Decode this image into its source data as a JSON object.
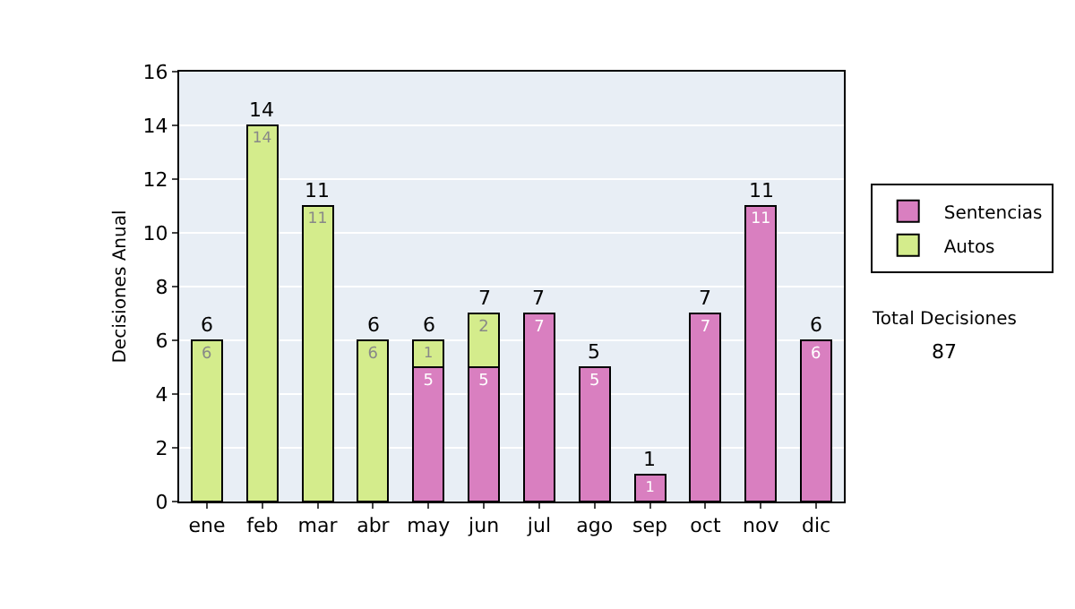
{
  "chart_data": {
    "type": "bar",
    "stacked": true,
    "ylabel": "Decisiones Anual",
    "categories": [
      "ene",
      "feb",
      "mar",
      "abr",
      "may",
      "jun",
      "jul",
      "ago",
      "sep",
      "oct",
      "nov",
      "dic"
    ],
    "series": [
      {
        "name": "Sentencias",
        "color": "#d97fc0",
        "values": [
          null,
          null,
          null,
          null,
          5,
          5,
          7,
          5,
          1,
          7,
          11,
          6
        ],
        "value_labels": [
          null,
          null,
          null,
          null,
          "5",
          "5",
          "7",
          "5",
          "1",
          "7",
          "11",
          "6"
        ]
      },
      {
        "name": "Autos",
        "color": "#d4ec8c",
        "values": [
          6,
          14,
          11,
          6,
          1,
          2,
          null,
          null,
          null,
          null,
          null,
          null
        ],
        "value_labels": [
          "6",
          "14",
          "11",
          "6",
          "1",
          "2",
          null,
          null,
          null,
          null,
          null,
          null
        ]
      }
    ],
    "totals": [
      "6",
      "14",
      "11",
      "6",
      "6",
      "7",
      "7",
      "5",
      "1",
      "7",
      "11",
      "6"
    ],
    "ylim": [
      0,
      16
    ],
    "yticks": [
      0,
      2,
      4,
      6,
      8,
      10,
      12,
      14,
      16
    ],
    "grid": "y",
    "legend": "right",
    "annotations": [
      "Total Decisiones",
      "87"
    ]
  }
}
